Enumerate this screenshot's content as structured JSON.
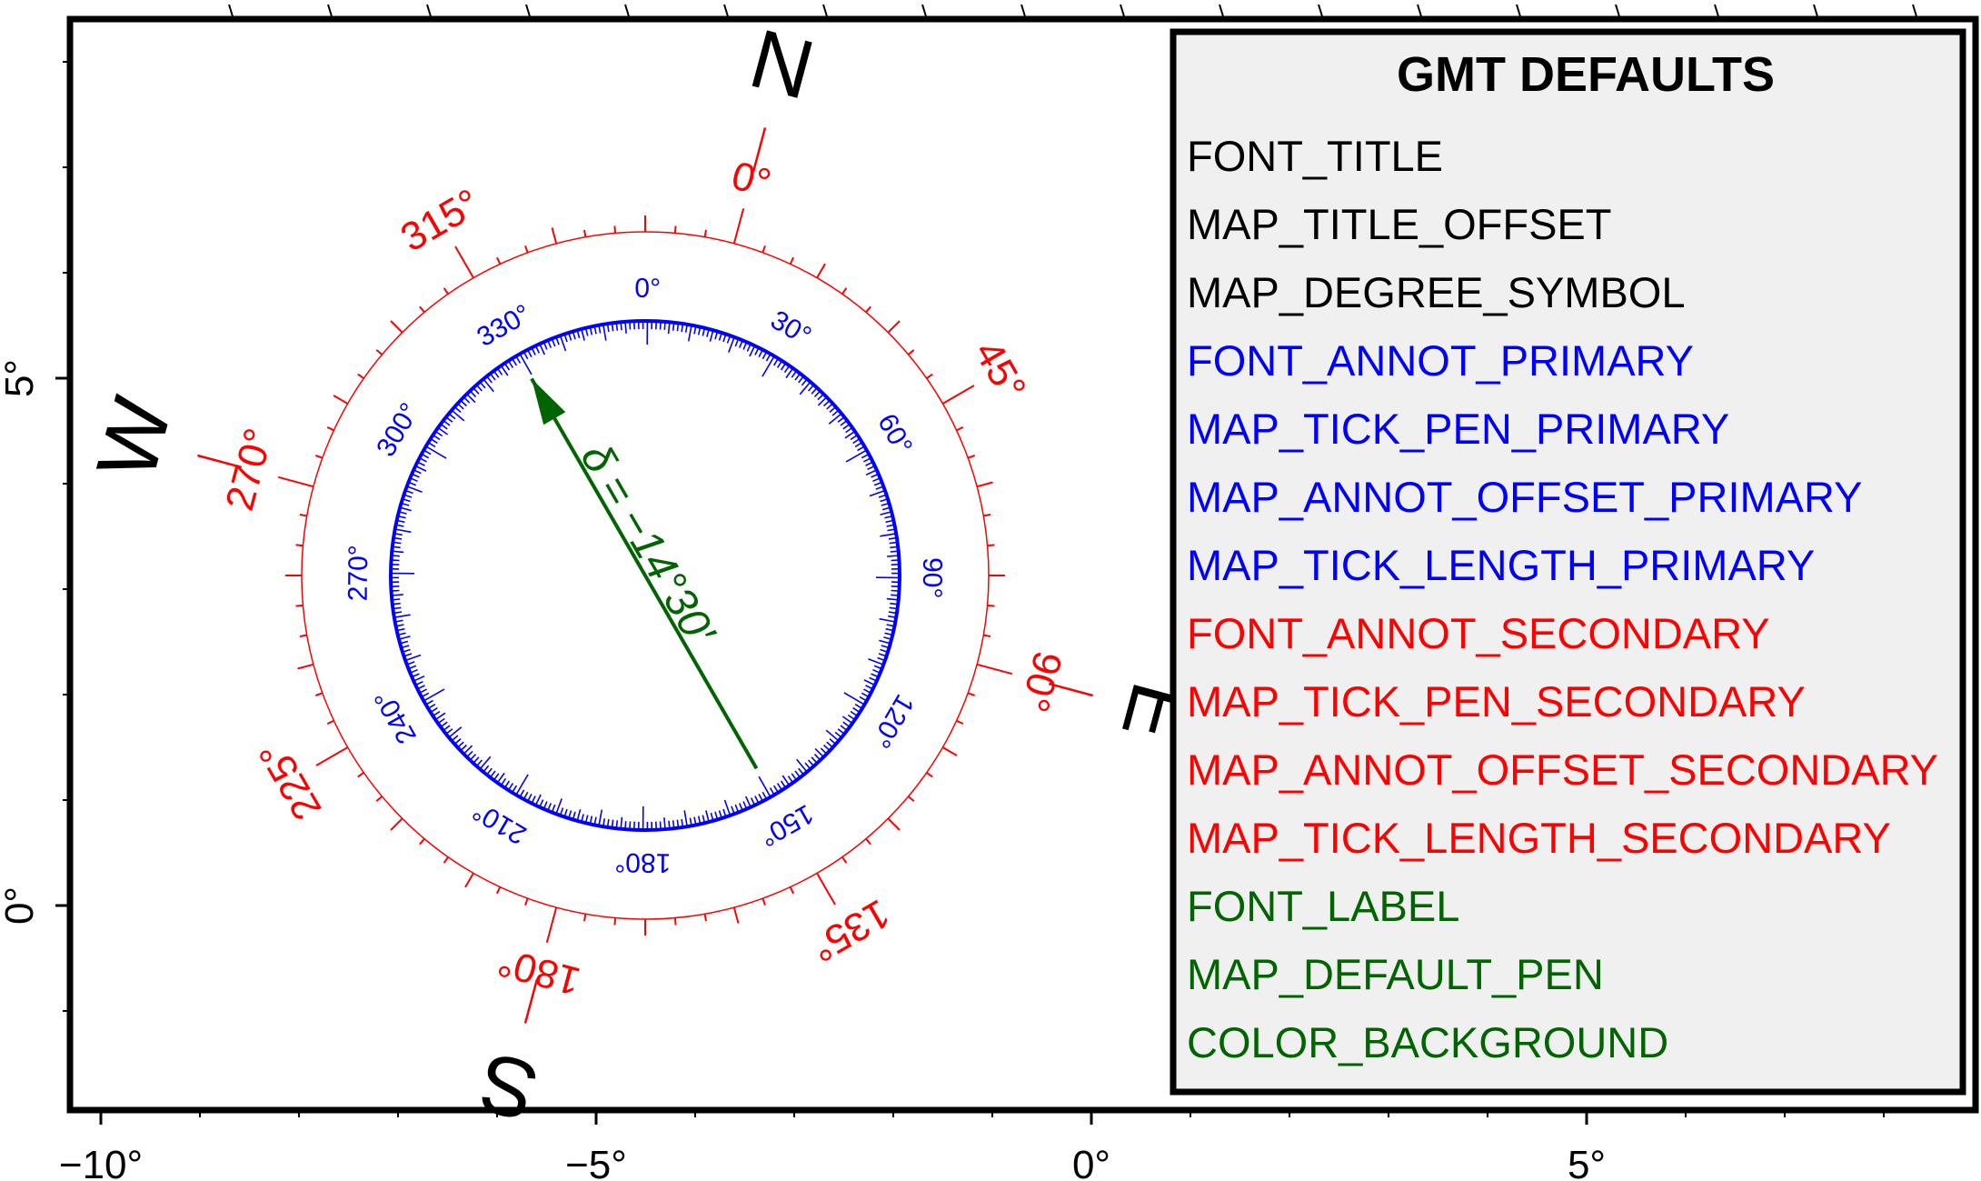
{
  "axes": {
    "x_ticks": [
      {
        "value": -10,
        "label": "−10°"
      },
      {
        "value": -5,
        "label": "−5°"
      },
      {
        "value": 0,
        "label": "0°"
      },
      {
        "value": 5,
        "label": "5°"
      }
    ],
    "y_ticks": [
      {
        "value": 0,
        "label": "0°"
      },
      {
        "value": 5,
        "label": "5°"
      }
    ]
  },
  "rose": {
    "cardinals": {
      "north": "N",
      "east": "E",
      "south": "S",
      "west": "W"
    },
    "declination_deg": -14.5,
    "outer_labels": [
      {
        "angle": 0,
        "text": "0°"
      },
      {
        "angle": 45,
        "text": "45°"
      },
      {
        "angle": 90,
        "text": "90°"
      },
      {
        "angle": 135,
        "text": "135°"
      },
      {
        "angle": 180,
        "text": "180°"
      },
      {
        "angle": 225,
        "text": "225°"
      },
      {
        "angle": 270,
        "text": "270°"
      },
      {
        "angle": 315,
        "text": "315°"
      }
    ],
    "inner_labels": [
      {
        "angle": 0,
        "text": "0°"
      },
      {
        "angle": 30,
        "text": "30°"
      },
      {
        "angle": 60,
        "text": "60°"
      },
      {
        "angle": 90,
        "text": "90°"
      },
      {
        "angle": 120,
        "text": "120°"
      },
      {
        "angle": 150,
        "text": "150°"
      },
      {
        "angle": 180,
        "text": "180°"
      },
      {
        "angle": 210,
        "text": "210°"
      },
      {
        "angle": 240,
        "text": "240°"
      },
      {
        "angle": 270,
        "text": "270°"
      },
      {
        "angle": 300,
        "text": "300°"
      },
      {
        "angle": 330,
        "text": "330°"
      }
    ],
    "declination_label": "δ = −14°30′"
  },
  "legend": {
    "title": "GMT DEFAULTS",
    "items": [
      {
        "text": "FONT_TITLE",
        "color": "#000000"
      },
      {
        "text": "MAP_TITLE_OFFSET",
        "color": "#000000"
      },
      {
        "text": "MAP_DEGREE_SYMBOL",
        "color": "#000000"
      },
      {
        "text": "FONT_ANNOT_PRIMARY",
        "color": "#0000ff"
      },
      {
        "text": "MAP_TICK_PEN_PRIMARY",
        "color": "#0000ff"
      },
      {
        "text": "MAP_ANNOT_OFFSET_PRIMARY",
        "color": "#0000ff"
      },
      {
        "text": "MAP_TICK_LENGTH_PRIMARY",
        "color": "#0000ff"
      },
      {
        "text": "FONT_ANNOT_SECONDARY",
        "color": "#ff0000"
      },
      {
        "text": "MAP_TICK_PEN_SECONDARY",
        "color": "#ff0000"
      },
      {
        "text": "MAP_ANNOT_OFFSET_SECONDARY",
        "color": "#ff0000"
      },
      {
        "text": "MAP_TICK_LENGTH_SECONDARY",
        "color": "#ff0000"
      },
      {
        "text": "FONT_LABEL",
        "color": "#006400"
      },
      {
        "text": "MAP_DEFAULT_PEN",
        "color": "#006400"
      },
      {
        "text": "COLOR_BACKGROUND",
        "color": "#006400"
      }
    ]
  },
  "colors": {
    "frame": "#000000",
    "primary": "#0000ff",
    "secondary": "#ff0000",
    "label": "#006400",
    "legend_bg": "#f0f0f0"
  }
}
